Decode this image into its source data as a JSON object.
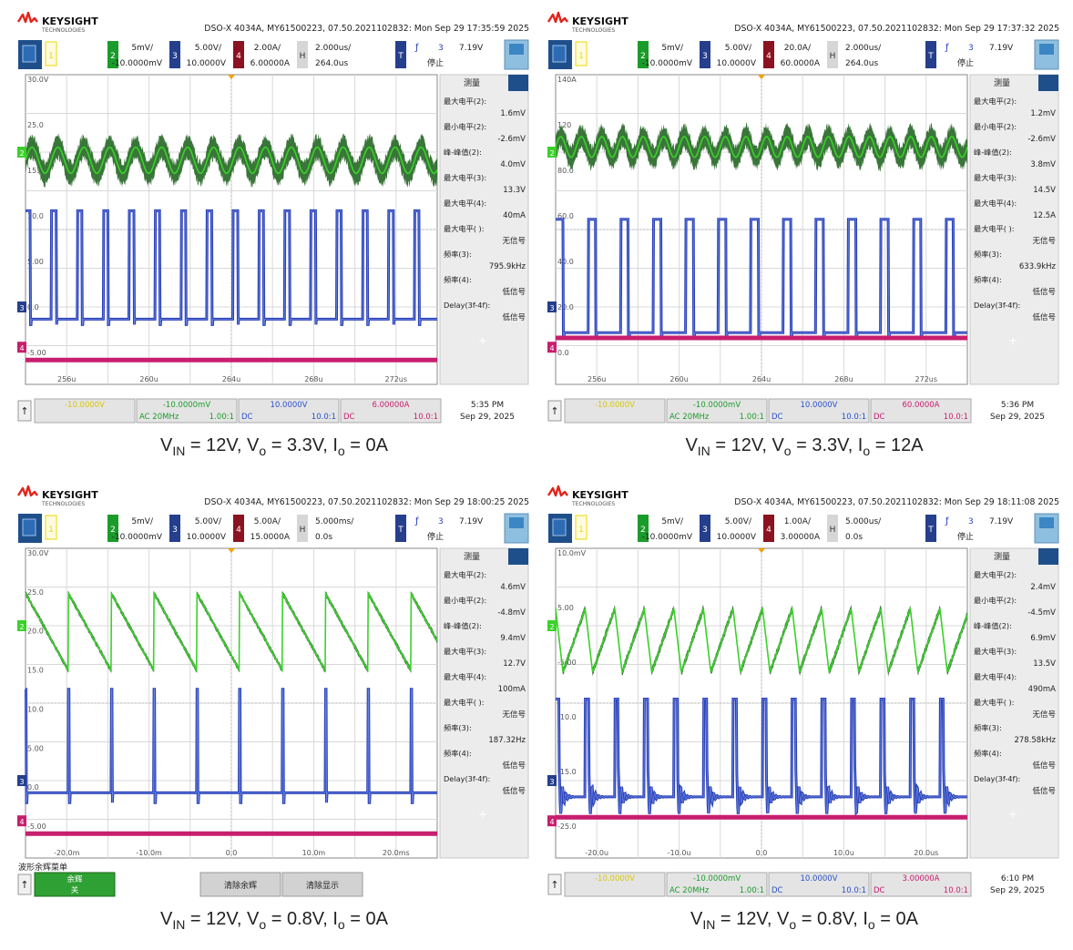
{
  "brand": {
    "name": "KEYSIGHT",
    "sub": "TECHNOLOGIES"
  },
  "common": {
    "trig_level": "7.19V",
    "trig_ch": "3",
    "trig_state": "停止",
    "meas_header": "测量",
    "labels": [
      "最大电平(2):",
      "最小电平(2):",
      "峰-峰值(2):",
      "最大电平(3):",
      "最大电平(4):",
      "最大电平( ):",
      "频率(3):",
      "频率(4):",
      "Delay(3f-4f):"
    ]
  },
  "scopes": [
    {
      "header": "DSO-X 4034A, MY61500223, 07.50.2021102832: Mon Sep 29 17:35:59 2025",
      "ch2": {
        "scale": "5mV/",
        "offset": "-10.0000mV"
      },
      "ch3": {
        "scale": "5.00V/",
        "offset": "10.0000V"
      },
      "ch4": {
        "scale": "2.00A/",
        "offset": "6.00000A"
      },
      "hor": {
        "scale": "2.000us/",
        "delay": "264.0us"
      },
      "meas_values": [
        "1.6mV",
        "-2.6mV",
        "4.0mV",
        "13.3V",
        "40mA",
        "无信号",
        "795.9kHz",
        "低信号",
        "低信号"
      ],
      "bottom": {
        "ch1": "-10.0000V",
        "ch2": "-10.0000mV",
        "ch2_mode": "AC 20MHz",
        "ch2_ratio": "1.00:1",
        "ch3": "10.0000V",
        "ch3_mode": "DC",
        "ch3_ratio": "10.0:1",
        "ch4": "6.00000A",
        "ch4_mode": "DC",
        "ch4_ratio": "10.0:1",
        "time": "5:35 PM",
        "date": "Sep 29, 2025"
      },
      "caption": {
        "vin": "12V",
        "vo": "3.3V",
        "io": "0A"
      },
      "chart_data": {
        "type": "line",
        "title": "",
        "x_ticks": [
          "256u",
          "260u",
          "264u",
          "268u",
          "272us"
        ],
        "y_ticks": [
          "30.0V",
          "25.0",
          "15.0",
          "10.0",
          "5.00",
          "0.0",
          "-5.00"
        ],
        "xlim": [
          254,
          274
        ],
        "ylim": [
          -8,
          30
        ],
        "grid": true,
        "series": [
          {
            "name": "2",
            "color": "#3bd12a",
            "kind": "ripple",
            "level": 19.5,
            "amplitude": 1.6,
            "period_us": 1.26,
            "noise": 1.8
          },
          {
            "name": "3",
            "color": "#2a40b8",
            "kind": "pulse",
            "low": 0.0,
            "high": 13.3,
            "period_us": 1.26,
            "duty": 0.2
          },
          {
            "name": "4",
            "color": "#c81e6e",
            "kind": "flat",
            "level": -5.0
          }
        ]
      }
    },
    {
      "header": "DSO-X 4034A, MY61500223, 07.50.2021102832: Mon Sep 29 17:37:32 2025",
      "ch2": {
        "scale": "5mV/",
        "offset": "-10.0000mV"
      },
      "ch3": {
        "scale": "5.00V/",
        "offset": "10.0000V"
      },
      "ch4": {
        "scale": "20.0A/",
        "offset": "60.0000A"
      },
      "hor": {
        "scale": "2.000us/",
        "delay": "264.0us"
      },
      "meas_values": [
        "1.2mV",
        "-2.6mV",
        "3.8mV",
        "14.5V",
        "12.5A",
        "无信号",
        "633.9kHz",
        "低信号",
        "低信号"
      ],
      "bottom": {
        "ch1": "-10.0000V",
        "ch2": "-10.0000mV",
        "ch2_mode": "AC 20MHz",
        "ch2_ratio": "1.00:1",
        "ch3": "10.0000V",
        "ch3_mode": "DC",
        "ch3_ratio": "10.0:1",
        "ch4": "60.0000A",
        "ch4_mode": "DC",
        "ch4_ratio": "10.0:1",
        "time": "5:36 PM",
        "date": "Sep 29, 2025"
      },
      "caption": {
        "vin": "12V",
        "vo": "3.3V",
        "io": "12A"
      },
      "chart_data": {
        "type": "line",
        "title": "",
        "x_ticks": [
          "256u",
          "260u",
          "264u",
          "268u",
          "272us"
        ],
        "y_ticks": [
          "140A",
          "120",
          "80.0",
          "60.0",
          "40.0",
          "20.0",
          "0.0"
        ],
        "xlim": [
          254,
          274
        ],
        "ylim": [
          -10,
          140
        ],
        "grid": true,
        "series": [
          {
            "name": "2",
            "color": "#3bd12a",
            "kind": "ripple",
            "level": 105,
            "amplitude": 5,
            "period_us": 1.0,
            "noise": 7
          },
          {
            "name": "3",
            "color": "#2a40b8",
            "kind": "pulse",
            "low": 15,
            "high": 70,
            "period_us": 1.58,
            "duty": 0.25
          },
          {
            "name": "4",
            "color": "#c81e6e",
            "kind": "flat",
            "level": 12.5
          }
        ]
      }
    },
    {
      "header": "DSO-X 4034A, MY61500223, 07.50.2021102832: Mon Sep 29 18:00:25 2025",
      "ch2": {
        "scale": "5mV/",
        "offset": "-10.0000mV"
      },
      "ch3": {
        "scale": "5.00V/",
        "offset": "10.0000V"
      },
      "ch4": {
        "scale": "5.00A/",
        "offset": "15.0000A"
      },
      "hor": {
        "scale": "5.000ms/",
        "delay": "0.0s"
      },
      "meas_values": [
        "4.6mV",
        "-4.8mV",
        "9.4mV",
        "12.7V",
        "100mA",
        "无信号",
        "187.32Hz",
        "低信号",
        "低信号"
      ],
      "bottom_mode": "persist",
      "bottom_menu": {
        "title": "波形余辉菜单",
        "persist": "余辉",
        "persist_val": "关",
        "clear_persist": "清除余辉",
        "clear_display": "清除显示"
      },
      "caption": {
        "vin": "12V",
        "vo": "0.8V",
        "io": "0A"
      },
      "chart_data": {
        "type": "line",
        "title": "",
        "x_ticks": [
          "-20.0m",
          "-10.0m",
          "0.0",
          "10.0m",
          "20.0ms"
        ],
        "y_ticks": [
          "30.0V",
          "25.0",
          "20.0",
          "15.0",
          "10.0",
          "5.00",
          "0.0",
          "-5.00"
        ],
        "xlim": [
          -25,
          25
        ],
        "ylim": [
          -8,
          30
        ],
        "grid": true,
        "series": [
          {
            "name": "2",
            "color": "#3bd12a",
            "kind": "saw",
            "low": 15.0,
            "high": 24.5,
            "period_us": 5.2,
            "noise": 0.4
          },
          {
            "name": "3",
            "color": "#2a40b8",
            "kind": "spike",
            "low": 0.0,
            "high": 12.7,
            "period_us": 5.2
          },
          {
            "name": "4",
            "color": "#c81e6e",
            "kind": "flat",
            "level": -5.0
          }
        ]
      }
    },
    {
      "header": "DSO-X 4034A, MY61500223, 07.50.2021102832: Mon Sep 29 18:11:08 2025",
      "ch2": {
        "scale": "5mV/",
        "offset": "-10.0000mV"
      },
      "ch3": {
        "scale": "5.00V/",
        "offset": "10.0000V"
      },
      "ch4": {
        "scale": "1.00A/",
        "offset": "3.00000A"
      },
      "hor": {
        "scale": "5.000us/",
        "delay": "0.0s"
      },
      "meas_values": [
        "2.4mV",
        "-4.5mV",
        "6.9mV",
        "13.5V",
        "490mA",
        "无信号",
        "278.58kHz",
        "低信号",
        "低信号"
      ],
      "bottom": {
        "ch1": "-10.0000V",
        "ch2": "-10.0000mV",
        "ch2_mode": "AC 20MHz",
        "ch2_ratio": "1.00:1",
        "ch3": "10.0000V",
        "ch3_mode": "DC",
        "ch3_ratio": "10.0:1",
        "ch4": "3.00000A",
        "ch4_mode": "DC",
        "ch4_ratio": "10.0:1",
        "time": "6:10 PM",
        "date": "Sep 29, 2025"
      },
      "caption": {
        "vin": "12V",
        "vo": "0.8V",
        "io": "0A"
      },
      "chart_data": {
        "type": "line",
        "title": "",
        "x_ticks": [
          "-20.0u",
          "-10.0u",
          "0.0",
          "10.0u",
          "20.0us"
        ],
        "y_ticks": [
          "10.0mV",
          "5.00",
          "-5.00",
          "-10.0",
          "-15.0",
          "-25.0"
        ],
        "xlim": [
          -25,
          25
        ],
        "ylim": [
          -28,
          10
        ],
        "grid": true,
        "series": [
          {
            "name": "2",
            "color": "#3bd12a",
            "kind": "saw_up",
            "low": -5.2,
            "high": 2.6,
            "period_us": 3.59,
            "noise": 0.6
          },
          {
            "name": "3",
            "color": "#2a40b8",
            "kind": "spike_ring",
            "low": -20.5,
            "high": -8.5,
            "period_us": 3.59
          },
          {
            "name": "4",
            "color": "#c81e6e",
            "kind": "flat",
            "level": -23.0
          }
        ]
      }
    }
  ]
}
